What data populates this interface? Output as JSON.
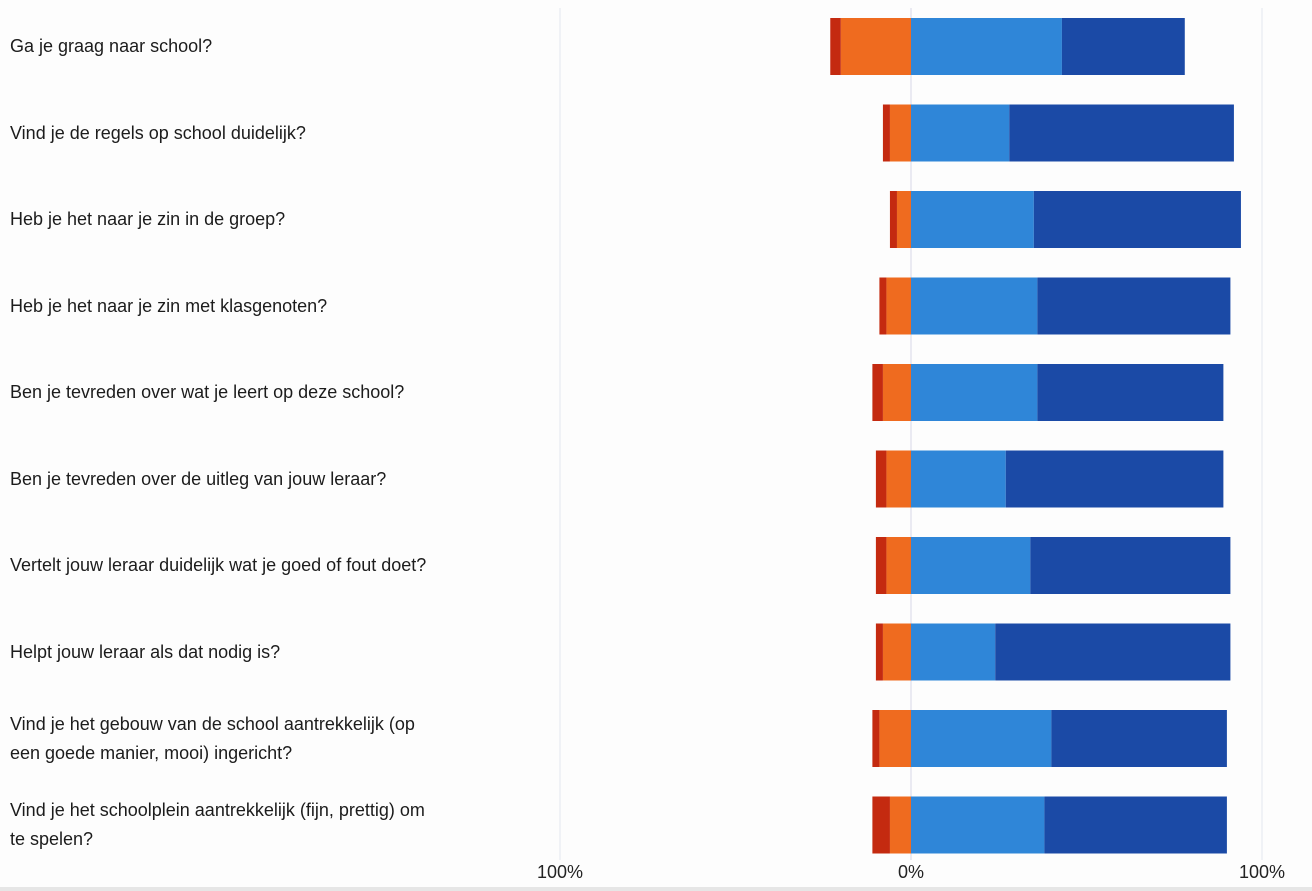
{
  "chart_data": {
    "type": "bar",
    "orientation": "horizontal",
    "stacked": "diverging",
    "xlim": [
      -100,
      100
    ],
    "tick_labels": [
      "100%",
      "0%",
      "100%"
    ],
    "grid": true,
    "colors": {
      "very_negative": "#c42a10",
      "negative": "#ef6b1f",
      "positive": "#2f86d8",
      "very_positive": "#1b4aa6",
      "grid": "#e4e6ee",
      "zero_line": "#d6d6e6"
    },
    "categories": [
      "Ga je graag naar school?",
      "Vind je de regels op school duidelijk?",
      "Heb je het naar je zin in de groep?",
      "Heb je het naar je zin met klasgenoten?",
      "Ben je tevreden over wat je leert op deze school?",
      "Ben je tevreden over de uitleg van jouw leraar?",
      "Vertelt jouw leraar duidelijk wat je goed of fout doet?",
      "Helpt jouw leraar als dat nodig is?",
      "Vind je het gebouw van de school aantrekkelijk (op\neen goede manier, mooi) ingericht?",
      "Vind je het schoolplein aantrekkelijk (fijn, prettig) om\nte spelen?"
    ],
    "series": [
      {
        "values": [
          3,
          2,
          2,
          2,
          3,
          3,
          3,
          2,
          2,
          5
        ]
      },
      {
        "values": [
          20,
          6,
          4,
          7,
          8,
          7,
          7,
          8,
          9,
          6
        ]
      },
      {
        "values": [
          43,
          28,
          35,
          36,
          36,
          27,
          34,
          24,
          40,
          38
        ]
      },
      {
        "values": [
          35,
          64,
          59,
          55,
          53,
          62,
          57,
          67,
          50,
          52
        ]
      }
    ]
  }
}
